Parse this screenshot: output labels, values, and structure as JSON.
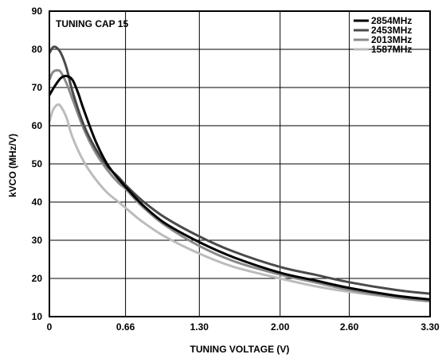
{
  "chart_data": {
    "type": "line",
    "title": "",
    "annotation": "TUNING CAP 15",
    "xlabel": "TUNING VOLTAGE (V)",
    "ylabel": "kVCO (MHz/V)",
    "xlim": [
      0,
      3.3
    ],
    "ylim": [
      10,
      90
    ],
    "x_ticks": [
      0,
      0.66,
      1.3,
      2.0,
      2.6,
      3.3
    ],
    "x_tick_labels": [
      "0",
      "0.66",
      "1.30",
      "2.00",
      "2.60",
      "3.30"
    ],
    "y_ticks": [
      10,
      20,
      30,
      40,
      50,
      60,
      70,
      80,
      90
    ],
    "y_tick_labels": [
      "10",
      "20",
      "30",
      "40",
      "50",
      "60",
      "70",
      "80",
      "90"
    ],
    "grid": true,
    "legend_position": "top-right",
    "series": [
      {
        "name": "2854MHz",
        "color": "#000000",
        "x": [
          0,
          0.05,
          0.1,
          0.15,
          0.2,
          0.25,
          0.3,
          0.4,
          0.5,
          0.6,
          0.66,
          0.8,
          1.0,
          1.3,
          1.6,
          2.0,
          2.3,
          2.6,
          3.0,
          3.3
        ],
        "y": [
          68,
          70.5,
          72.5,
          73,
          72,
          68.5,
          64,
          56,
          50,
          46,
          44,
          39.5,
          34.5,
          29.5,
          25.5,
          21.5,
          19.5,
          17.5,
          15.5,
          14.5
        ]
      },
      {
        "name": "2453MHz",
        "color": "#4a4a4a",
        "x": [
          0,
          0.03,
          0.06,
          0.1,
          0.15,
          0.2,
          0.3,
          0.4,
          0.5,
          0.6,
          0.66,
          0.8,
          1.0,
          1.3,
          1.6,
          2.0,
          2.3,
          2.6,
          3.0,
          3.3
        ],
        "y": [
          79,
          80.5,
          80.5,
          79,
          75,
          69,
          60,
          54,
          49.5,
          46.5,
          44.5,
          40.5,
          36,
          31,
          27,
          23,
          21,
          19,
          17,
          16
        ]
      },
      {
        "name": "2013MHz",
        "color": "#8a8a8a",
        "x": [
          0,
          0.03,
          0.07,
          0.1,
          0.15,
          0.2,
          0.3,
          0.4,
          0.5,
          0.6,
          0.66,
          0.8,
          1.0,
          1.3,
          1.6,
          2.0,
          2.3,
          2.6,
          3.0,
          3.3
        ],
        "y": [
          72,
          74,
          74.5,
          74,
          71,
          67,
          59,
          53,
          48.5,
          45,
          43.5,
          39,
          34,
          28.5,
          24.5,
          21,
          19,
          17,
          15,
          14
        ]
      },
      {
        "name": "1587MHz",
        "color": "#bcbcbc",
        "x": [
          0,
          0.03,
          0.07,
          0.1,
          0.15,
          0.2,
          0.3,
          0.4,
          0.5,
          0.6,
          0.66,
          0.8,
          1.0,
          1.3,
          1.6,
          2.0,
          2.3,
          2.6,
          3.0,
          3.3
        ],
        "y": [
          61,
          64,
          65.5,
          65,
          62,
          57,
          50.5,
          46,
          42.5,
          40,
          38.5,
          35,
          31,
          26.5,
          23,
          20,
          18,
          16.5,
          15,
          14
        ]
      }
    ]
  }
}
